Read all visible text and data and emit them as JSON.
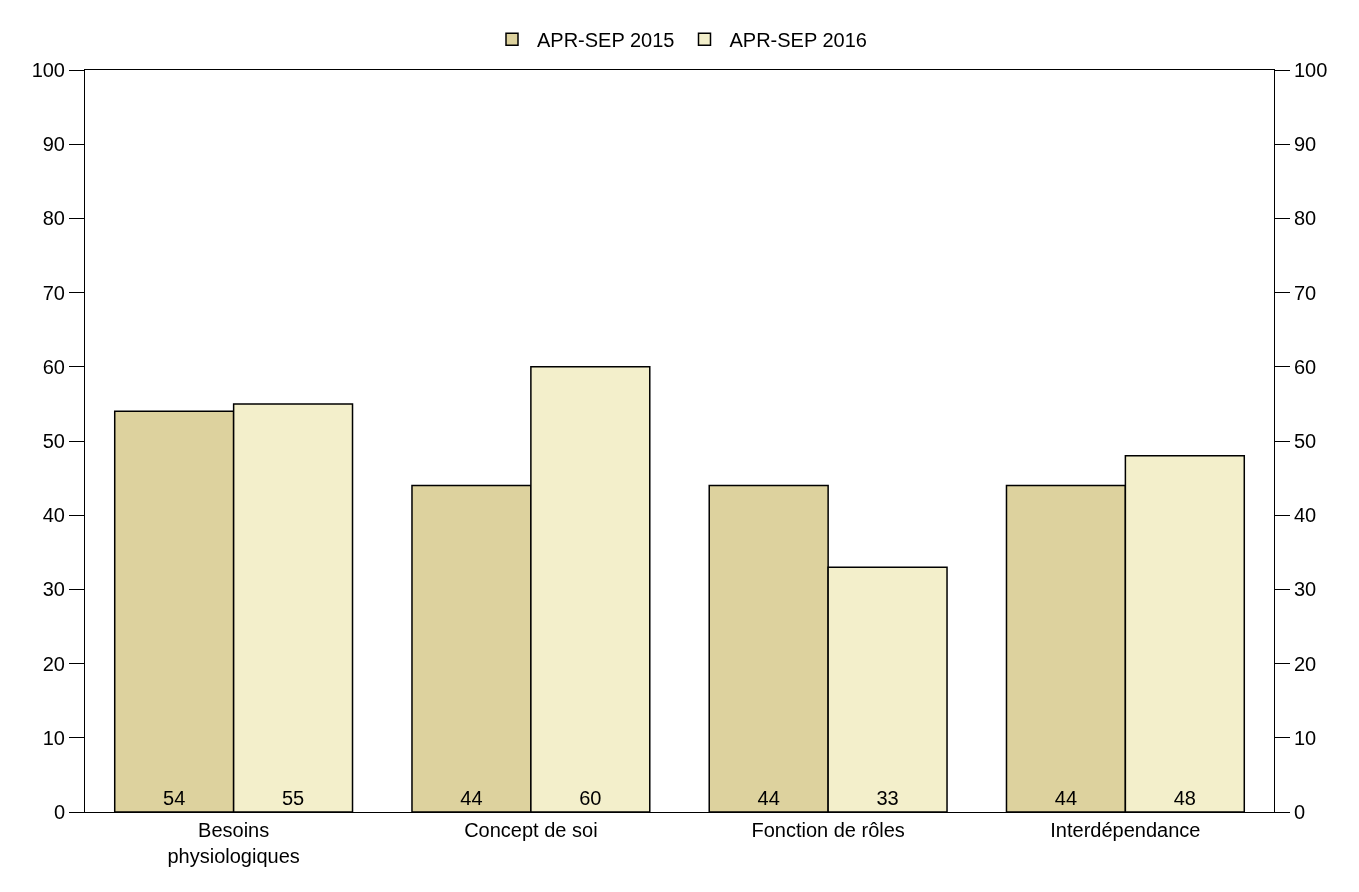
{
  "chart_data": {
    "type": "bar",
    "categories": [
      "Besoins physiologiques",
      "Concept de soi",
      "Fonction de rôles",
      "Interdépendance"
    ],
    "series": [
      {
        "name": "APR-SEP 2015",
        "color": "#ddd29e",
        "values": [
          54,
          44,
          44,
          44
        ]
      },
      {
        "name": "APR-SEP 2016",
        "color": "#f3efcb",
        "values": [
          55,
          60,
          33,
          48
        ]
      }
    ],
    "ylim": [
      0,
      100
    ],
    "yticks": [
      0,
      10,
      20,
      30,
      40,
      50,
      60,
      70,
      80,
      90,
      100
    ],
    "y2lim": [
      0,
      100
    ],
    "y2ticks": [
      0,
      10,
      20,
      30,
      40,
      50,
      60,
      70,
      80,
      90,
      100
    ],
    "data_labels": true,
    "legend": "top"
  }
}
